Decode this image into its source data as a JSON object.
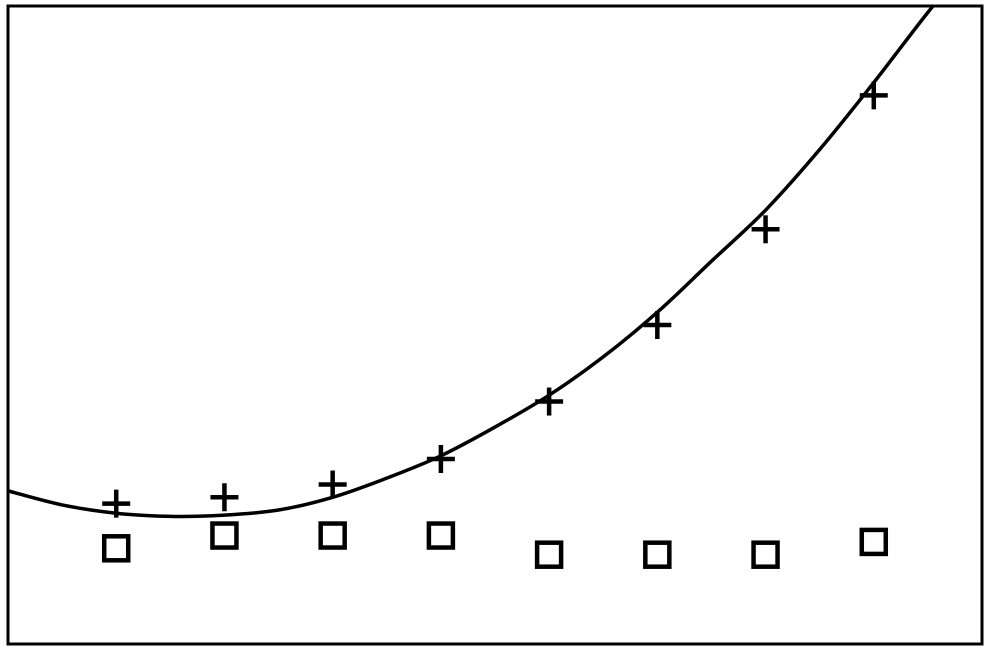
{
  "chart_data": {
    "type": "scatter",
    "title": "",
    "xlabel": "",
    "ylabel": "",
    "grid": false,
    "legend": "none",
    "xlim": [
      0,
      9
    ],
    "ylim": [
      0,
      10
    ],
    "series": [
      {
        "marker": "plus",
        "x": [
          1,
          2,
          3,
          4,
          5,
          6,
          7,
          8
        ],
        "y": [
          2.2,
          2.3,
          2.5,
          2.9,
          3.8,
          5.0,
          6.5,
          8.6
        ]
      },
      {
        "marker": "square",
        "x": [
          1,
          2,
          3,
          4,
          5,
          6,
          7,
          8
        ],
        "y": [
          1.5,
          1.7,
          1.7,
          1.7,
          1.4,
          1.4,
          1.4,
          1.6
        ]
      }
    ],
    "curve": {
      "kind": "fitted-line",
      "x": [
        0,
        0.5,
        1,
        1.5,
        2,
        2.5,
        3,
        3.5,
        4,
        4.5,
        5,
        5.5,
        6,
        6.5,
        7,
        7.5,
        8,
        8.5,
        8.8
      ],
      "y": [
        2.4,
        2.18,
        2.05,
        2.0,
        2.02,
        2.1,
        2.3,
        2.6,
        2.95,
        3.4,
        3.9,
        4.5,
        5.2,
        6.0,
        6.8,
        7.75,
        8.8,
        9.9,
        10.5
      ]
    },
    "colors": {
      "ink": "#000000",
      "background": "#ffffff"
    }
  }
}
